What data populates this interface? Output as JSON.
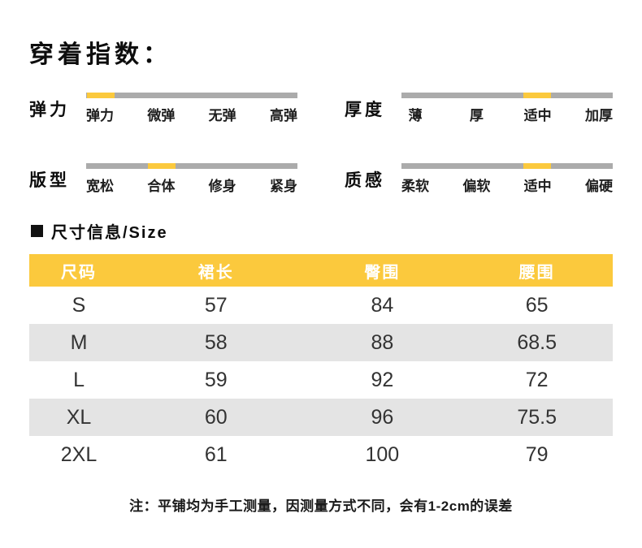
{
  "header": {
    "title": "穿着指数："
  },
  "colors": {
    "accent_yellow": "#FBC93D",
    "track_gray": "#ABABAB",
    "stripe_gray": "#E4E4E4"
  },
  "indices": [
    {
      "label": "弹力",
      "options": [
        "弹力",
        "微弹",
        "无弹",
        "高弹"
      ],
      "selected": 0
    },
    {
      "label": "厚度",
      "options": [
        "薄",
        "厚",
        "适中",
        "加厚"
      ],
      "selected": 2
    },
    {
      "label": "版型",
      "options": [
        "宽松",
        "合体",
        "修身",
        "紧身"
      ],
      "selected": 1
    },
    {
      "label": "质感",
      "options": [
        "柔软",
        "偏软",
        "适中",
        "偏硬"
      ],
      "selected": 2
    }
  ],
  "size_section": {
    "heading": "尺寸信息/Size",
    "table": {
      "headers": [
        "尺码",
        "裙长",
        "臀围",
        "腰围"
      ],
      "rows": [
        [
          "S",
          "57",
          "84",
          "65"
        ],
        [
          "M",
          "58",
          "88",
          "68.5"
        ],
        [
          "L",
          "59",
          "92",
          "72"
        ],
        [
          "XL",
          "60",
          "96",
          "75.5"
        ],
        [
          "2XL",
          "61",
          "100",
          "79"
        ]
      ]
    },
    "note": "注：平铺均为手工测量，因测量方式不同，会有1-2cm的误差"
  }
}
